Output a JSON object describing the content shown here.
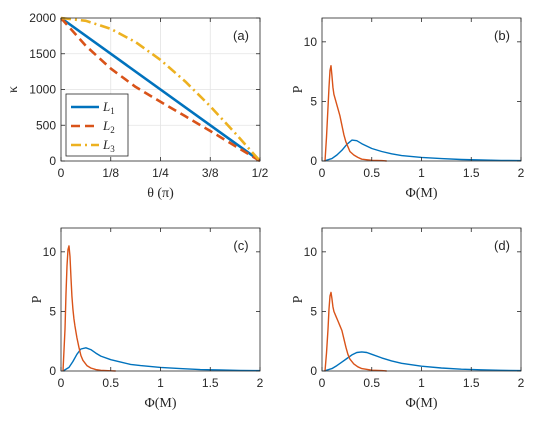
{
  "colors": {
    "c1": "#0072BD",
    "c2": "#D95319",
    "c3": "#EDB120",
    "axis": "#262626",
    "grid": "#e3e3e3"
  },
  "chart_data": [
    {
      "panel": "(a)",
      "type": "line",
      "xlabel": "θ (π)",
      "ylabel": "κ",
      "xlim": [
        0,
        0.5
      ],
      "ylim": [
        0,
        2000
      ],
      "grid": true,
      "legend": "bottom-left",
      "xticks": [
        0,
        0.125,
        0.25,
        0.375,
        0.5
      ],
      "xtick_labels": [
        "0",
        "1/8",
        "1/4",
        "3/8",
        "1/2"
      ],
      "yticks": [
        0,
        500,
        1000,
        1500,
        2000
      ],
      "ytick_labels": [
        "0",
        "500",
        "1000",
        "1500",
        "2000"
      ],
      "series": [
        {
          "name": "L1",
          "sub": "1",
          "style": "solid",
          "color": "c1",
          "x": [
            0,
            0.5
          ],
          "y": [
            2000,
            0
          ]
        },
        {
          "name": "L2",
          "sub": "2",
          "style": "dash",
          "color": "c2",
          "x": [
            0,
            0.0625,
            0.125,
            0.1875,
            0.25,
            0.3125,
            0.375,
            0.4375,
            0.5
          ],
          "y": [
            2000,
            1610,
            1293,
            1037,
            828,
            625,
            420,
            210,
            0
          ]
        },
        {
          "name": "L3",
          "sub": "3",
          "style": "dashdot",
          "color": "c3",
          "x": [
            0,
            0.0625,
            0.125,
            0.1875,
            0.25,
            0.3125,
            0.375,
            0.4375,
            0.5
          ],
          "y": [
            2000,
            1961,
            1848,
            1663,
            1414,
            1111,
            765,
            390,
            0
          ]
        }
      ]
    },
    {
      "panel": "(b)",
      "type": "line",
      "xlabel": "Φ(M)",
      "ylabel": "P",
      "xlim": [
        0,
        2
      ],
      "ylim": [
        0,
        12
      ],
      "grid": false,
      "xticks": [
        0,
        0.5,
        1,
        1.5,
        2
      ],
      "xtick_labels": [
        "0",
        "0.5",
        "1",
        "1.5",
        "2"
      ],
      "yticks": [
        0,
        5,
        10
      ],
      "ytick_labels": [
        "0",
        "5",
        "10"
      ],
      "series": [
        {
          "color": "c1",
          "x": [
            0.02,
            0.1,
            0.15,
            0.2,
            0.25,
            0.3,
            0.35,
            0.4,
            0.5,
            0.6,
            0.7,
            0.8,
            1.0,
            1.2,
            1.4,
            1.6,
            1.8,
            2.0
          ],
          "y": [
            0,
            0.2,
            0.5,
            0.9,
            1.4,
            1.75,
            1.7,
            1.45,
            1.05,
            0.8,
            0.6,
            0.45,
            0.3,
            0.2,
            0.13,
            0.08,
            0.05,
            0.03
          ]
        },
        {
          "color": "c2",
          "x": [
            0.03,
            0.045,
            0.06,
            0.07,
            0.08,
            0.09,
            0.1,
            0.11,
            0.12,
            0.14,
            0.16,
            0.18,
            0.2,
            0.22,
            0.24,
            0.26,
            0.28,
            0.32,
            0.36,
            0.4,
            0.5,
            0.6,
            0.65
          ],
          "y": [
            0,
            2,
            4.5,
            6.2,
            7.6,
            8.0,
            7.2,
            6.2,
            5.6,
            5.0,
            4.4,
            3.8,
            3.0,
            2.2,
            1.6,
            1.2,
            0.8,
            0.5,
            0.3,
            0.15,
            0.06,
            0.03,
            0
          ]
        }
      ]
    },
    {
      "panel": "(c)",
      "type": "line",
      "xlabel": "Φ(M)",
      "ylabel": "P",
      "xlim": [
        0,
        2
      ],
      "ylim": [
        0,
        12
      ],
      "grid": false,
      "xticks": [
        0,
        0.5,
        1,
        1.5,
        2
      ],
      "xtick_labels": [
        "0",
        "0.5",
        "1",
        "1.5",
        "2"
      ],
      "yticks": [
        0,
        5,
        10
      ],
      "ytick_labels": [
        "0",
        "5",
        "10"
      ],
      "series": [
        {
          "color": "c1",
          "x": [
            0.02,
            0.08,
            0.12,
            0.16,
            0.2,
            0.25,
            0.3,
            0.35,
            0.4,
            0.5,
            0.6,
            0.7,
            0.8,
            1.0,
            1.2,
            1.4,
            1.6,
            1.8,
            2.0
          ],
          "y": [
            0,
            0.3,
            0.8,
            1.4,
            1.85,
            1.95,
            1.8,
            1.5,
            1.25,
            0.95,
            0.75,
            0.55,
            0.45,
            0.3,
            0.2,
            0.12,
            0.08,
            0.05,
            0.03
          ]
        },
        {
          "color": "c2",
          "x": [
            0.02,
            0.04,
            0.05,
            0.06,
            0.07,
            0.08,
            0.09,
            0.1,
            0.11,
            0.12,
            0.13,
            0.14,
            0.15,
            0.16,
            0.18,
            0.2,
            0.22,
            0.26,
            0.3,
            0.35,
            0.4,
            0.5,
            0.55
          ],
          "y": [
            0,
            3.5,
            6.5,
            8.8,
            10.2,
            10.5,
            9.6,
            7.8,
            6.3,
            5.2,
            4.4,
            3.8,
            3.3,
            2.8,
            2.0,
            1.3,
            0.9,
            0.45,
            0.25,
            0.12,
            0.06,
            0.02,
            0
          ]
        }
      ]
    },
    {
      "panel": "(d)",
      "type": "line",
      "xlabel": "Φ(M)",
      "ylabel": "P",
      "xlim": [
        0,
        2
      ],
      "ylim": [
        0,
        12
      ],
      "grid": false,
      "xticks": [
        0,
        0.5,
        1,
        1.5,
        2
      ],
      "xtick_labels": [
        "0",
        "0.5",
        "1",
        "1.5",
        "2"
      ],
      "yticks": [
        0,
        5,
        10
      ],
      "ytick_labels": [
        "0",
        "5",
        "10"
      ],
      "series": [
        {
          "color": "c1",
          "x": [
            0.02,
            0.1,
            0.15,
            0.2,
            0.25,
            0.3,
            0.35,
            0.4,
            0.45,
            0.5,
            0.6,
            0.7,
            0.8,
            1.0,
            1.2,
            1.4,
            1.6,
            1.8,
            2.0
          ],
          "y": [
            0,
            0.2,
            0.45,
            0.75,
            1.05,
            1.35,
            1.55,
            1.6,
            1.55,
            1.4,
            1.1,
            0.85,
            0.65,
            0.4,
            0.25,
            0.15,
            0.1,
            0.06,
            0.03
          ]
        },
        {
          "color": "c2",
          "x": [
            0.03,
            0.045,
            0.06,
            0.07,
            0.08,
            0.09,
            0.1,
            0.11,
            0.12,
            0.14,
            0.16,
            0.18,
            0.2,
            0.22,
            0.24,
            0.26,
            0.28,
            0.32,
            0.36,
            0.4,
            0.5,
            0.6,
            0.65
          ],
          "y": [
            0,
            1.5,
            3.5,
            5.2,
            6.3,
            6.6,
            6.1,
            5.4,
            5.0,
            4.6,
            4.2,
            3.8,
            3.4,
            2.7,
            2.0,
            1.4,
            1.0,
            0.6,
            0.35,
            0.2,
            0.07,
            0.03,
            0
          ]
        }
      ]
    }
  ]
}
